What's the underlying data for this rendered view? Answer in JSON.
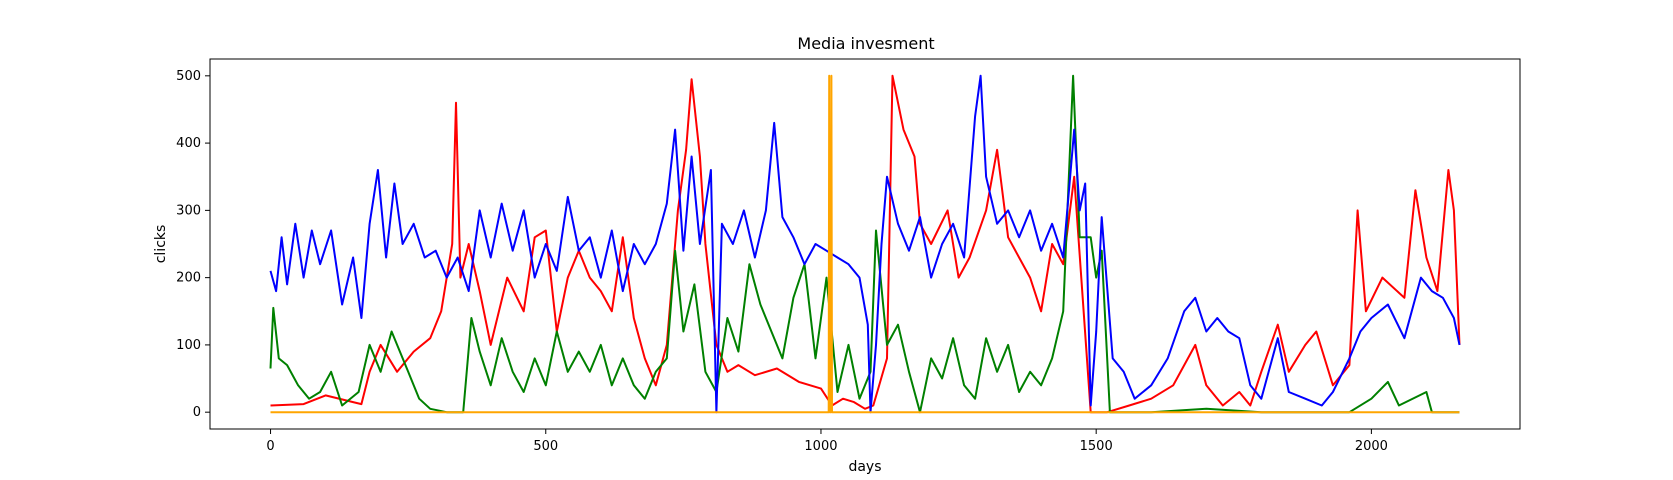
{
  "chart_data": {
    "type": "line",
    "title": "Media invesment",
    "xlabel": "days",
    "ylabel": "clicks",
    "xlim": [
      -110,
      2270
    ],
    "ylim": [
      -25,
      525
    ],
    "xticks": [
      0,
      500,
      1000,
      1500,
      2000
    ],
    "yticks": [
      0,
      100,
      200,
      300,
      400,
      500
    ],
    "grid": false,
    "legend": "none",
    "series": [
      {
        "color": "#ff0000",
        "points": [
          [
            0,
            10
          ],
          [
            60,
            12
          ],
          [
            100,
            25
          ],
          [
            150,
            15
          ],
          [
            165,
            12
          ],
          [
            180,
            60
          ],
          [
            200,
            100
          ],
          [
            230,
            60
          ],
          [
            260,
            90
          ],
          [
            290,
            110
          ],
          [
            310,
            150
          ],
          [
            330,
            250
          ],
          [
            337,
            460
          ],
          [
            345,
            200
          ],
          [
            360,
            250
          ],
          [
            380,
            180
          ],
          [
            400,
            100
          ],
          [
            430,
            200
          ],
          [
            460,
            150
          ],
          [
            480,
            260
          ],
          [
            500,
            270
          ],
          [
            520,
            120
          ],
          [
            540,
            200
          ],
          [
            560,
            240
          ],
          [
            580,
            200
          ],
          [
            600,
            180
          ],
          [
            620,
            150
          ],
          [
            640,
            260
          ],
          [
            660,
            140
          ],
          [
            680,
            80
          ],
          [
            700,
            40
          ],
          [
            720,
            100
          ],
          [
            740,
            300
          ],
          [
            755,
            390
          ],
          [
            765,
            495
          ],
          [
            780,
            380
          ],
          [
            790,
            250
          ],
          [
            810,
            100
          ],
          [
            830,
            60
          ],
          [
            850,
            70
          ],
          [
            880,
            55
          ],
          [
            920,
            65
          ],
          [
            960,
            45
          ],
          [
            1000,
            35
          ],
          [
            1020,
            10
          ],
          [
            1040,
            20
          ],
          [
            1060,
            15
          ],
          [
            1080,
            5
          ],
          [
            1095,
            10
          ],
          [
            1120,
            80
          ],
          [
            1130,
            500
          ],
          [
            1150,
            420
          ],
          [
            1170,
            380
          ],
          [
            1180,
            280
          ],
          [
            1200,
            250
          ],
          [
            1230,
            300
          ],
          [
            1250,
            200
          ],
          [
            1270,
            230
          ],
          [
            1300,
            300
          ],
          [
            1320,
            390
          ],
          [
            1340,
            260
          ],
          [
            1360,
            230
          ],
          [
            1380,
            200
          ],
          [
            1400,
            150
          ],
          [
            1420,
            250
          ],
          [
            1440,
            220
          ],
          [
            1460,
            350
          ],
          [
            1490,
            0
          ],
          [
            1520,
            0
          ],
          [
            1560,
            10
          ],
          [
            1600,
            20
          ],
          [
            1640,
            40
          ],
          [
            1680,
            100
          ],
          [
            1700,
            40
          ],
          [
            1730,
            10
          ],
          [
            1760,
            30
          ],
          [
            1780,
            10
          ],
          [
            1800,
            60
          ],
          [
            1830,
            130
          ],
          [
            1850,
            60
          ],
          [
            1880,
            100
          ],
          [
            1900,
            120
          ],
          [
            1930,
            40
          ],
          [
            1960,
            70
          ],
          [
            1975,
            300
          ],
          [
            1990,
            150
          ],
          [
            2020,
            200
          ],
          [
            2060,
            170
          ],
          [
            2080,
            330
          ],
          [
            2100,
            230
          ],
          [
            2120,
            180
          ],
          [
            2140,
            360
          ],
          [
            2150,
            300
          ],
          [
            2160,
            100
          ]
        ]
      },
      {
        "color": "#008000",
        "points": [
          [
            0,
            65
          ],
          [
            5,
            155
          ],
          [
            15,
            80
          ],
          [
            30,
            70
          ],
          [
            50,
            40
          ],
          [
            70,
            20
          ],
          [
            90,
            30
          ],
          [
            110,
            60
          ],
          [
            130,
            10
          ],
          [
            160,
            30
          ],
          [
            180,
            100
          ],
          [
            200,
            60
          ],
          [
            220,
            120
          ],
          [
            250,
            60
          ],
          [
            270,
            20
          ],
          [
            290,
            5
          ],
          [
            320,
            0
          ],
          [
            350,
            0
          ],
          [
            365,
            140
          ],
          [
            380,
            90
          ],
          [
            400,
            40
          ],
          [
            420,
            110
          ],
          [
            440,
            60
          ],
          [
            460,
            30
          ],
          [
            480,
            80
          ],
          [
            500,
            40
          ],
          [
            520,
            120
          ],
          [
            540,
            60
          ],
          [
            560,
            90
          ],
          [
            580,
            60
          ],
          [
            600,
            100
          ],
          [
            620,
            40
          ],
          [
            640,
            80
          ],
          [
            660,
            40
          ],
          [
            680,
            20
          ],
          [
            700,
            60
          ],
          [
            720,
            80
          ],
          [
            735,
            240
          ],
          [
            750,
            120
          ],
          [
            770,
            190
          ],
          [
            790,
            60
          ],
          [
            810,
            30
          ],
          [
            830,
            140
          ],
          [
            850,
            90
          ],
          [
            870,
            220
          ],
          [
            890,
            160
          ],
          [
            910,
            120
          ],
          [
            930,
            80
          ],
          [
            950,
            170
          ],
          [
            970,
            220
          ],
          [
            990,
            80
          ],
          [
            1010,
            200
          ],
          [
            1030,
            30
          ],
          [
            1050,
            100
          ],
          [
            1070,
            20
          ],
          [
            1090,
            60
          ],
          [
            1100,
            270
          ],
          [
            1120,
            100
          ],
          [
            1140,
            130
          ],
          [
            1160,
            60
          ],
          [
            1180,
            0
          ],
          [
            1200,
            80
          ],
          [
            1220,
            50
          ],
          [
            1240,
            110
          ],
          [
            1260,
            40
          ],
          [
            1280,
            20
          ],
          [
            1300,
            110
          ],
          [
            1320,
            60
          ],
          [
            1340,
            100
          ],
          [
            1360,
            30
          ],
          [
            1380,
            60
          ],
          [
            1400,
            40
          ],
          [
            1420,
            80
          ],
          [
            1440,
            150
          ],
          [
            1458,
            500
          ],
          [
            1470,
            260
          ],
          [
            1490,
            260
          ],
          [
            1500,
            200
          ],
          [
            1510,
            240
          ],
          [
            1525,
            0
          ],
          [
            1600,
            0
          ],
          [
            1700,
            5
          ],
          [
            1800,
            0
          ],
          [
            1900,
            0
          ],
          [
            1960,
            0
          ],
          [
            2000,
            20
          ],
          [
            2030,
            45
          ],
          [
            2050,
            10
          ],
          [
            2100,
            30
          ],
          [
            2110,
            0
          ],
          [
            2160,
            0
          ]
        ]
      },
      {
        "color": "#0000ff",
        "points": [
          [
            0,
            210
          ],
          [
            10,
            180
          ],
          [
            20,
            260
          ],
          [
            30,
            190
          ],
          [
            45,
            280
          ],
          [
            60,
            200
          ],
          [
            75,
            270
          ],
          [
            90,
            220
          ],
          [
            110,
            270
          ],
          [
            130,
            160
          ],
          [
            150,
            230
          ],
          [
            165,
            140
          ],
          [
            180,
            280
          ],
          [
            195,
            360
          ],
          [
            210,
            230
          ],
          [
            225,
            340
          ],
          [
            240,
            250
          ],
          [
            260,
            280
          ],
          [
            280,
            230
          ],
          [
            300,
            240
          ],
          [
            320,
            200
          ],
          [
            340,
            230
          ],
          [
            360,
            180
          ],
          [
            380,
            300
          ],
          [
            400,
            230
          ],
          [
            420,
            310
          ],
          [
            440,
            240
          ],
          [
            460,
            300
          ],
          [
            480,
            200
          ],
          [
            500,
            250
          ],
          [
            520,
            210
          ],
          [
            540,
            320
          ],
          [
            560,
            240
          ],
          [
            580,
            260
          ],
          [
            600,
            200
          ],
          [
            620,
            270
          ],
          [
            640,
            180
          ],
          [
            660,
            250
          ],
          [
            680,
            220
          ],
          [
            700,
            250
          ],
          [
            720,
            310
          ],
          [
            735,
            420
          ],
          [
            750,
            240
          ],
          [
            765,
            380
          ],
          [
            780,
            250
          ],
          [
            800,
            360
          ],
          [
            810,
            0
          ],
          [
            820,
            280
          ],
          [
            840,
            250
          ],
          [
            860,
            300
          ],
          [
            880,
            230
          ],
          [
            900,
            300
          ],
          [
            915,
            430
          ],
          [
            930,
            290
          ],
          [
            950,
            260
          ],
          [
            970,
            220
          ],
          [
            990,
            250
          ],
          [
            1010,
            240
          ],
          [
            1030,
            230
          ],
          [
            1050,
            220
          ],
          [
            1070,
            200
          ],
          [
            1085,
            130
          ],
          [
            1090,
            0
          ],
          [
            1100,
            100
          ],
          [
            1110,
            250
          ],
          [
            1120,
            350
          ],
          [
            1140,
            280
          ],
          [
            1160,
            240
          ],
          [
            1180,
            290
          ],
          [
            1200,
            200
          ],
          [
            1220,
            250
          ],
          [
            1240,
            280
          ],
          [
            1260,
            230
          ],
          [
            1280,
            440
          ],
          [
            1290,
            500
          ],
          [
            1300,
            350
          ],
          [
            1320,
            280
          ],
          [
            1340,
            300
          ],
          [
            1360,
            260
          ],
          [
            1380,
            300
          ],
          [
            1400,
            240
          ],
          [
            1420,
            280
          ],
          [
            1440,
            230
          ],
          [
            1460,
            420
          ],
          [
            1470,
            300
          ],
          [
            1480,
            340
          ],
          [
            1490,
            10
          ],
          [
            1500,
            120
          ],
          [
            1510,
            290
          ],
          [
            1530,
            80
          ],
          [
            1550,
            60
          ],
          [
            1570,
            20
          ],
          [
            1600,
            40
          ],
          [
            1630,
            80
          ],
          [
            1660,
            150
          ],
          [
            1680,
            170
          ],
          [
            1700,
            120
          ],
          [
            1720,
            140
          ],
          [
            1740,
            120
          ],
          [
            1760,
            110
          ],
          [
            1780,
            40
          ],
          [
            1800,
            20
          ],
          [
            1830,
            110
          ],
          [
            1850,
            30
          ],
          [
            1880,
            20
          ],
          [
            1910,
            10
          ],
          [
            1930,
            30
          ],
          [
            1960,
            80
          ],
          [
            1980,
            120
          ],
          [
            2000,
            140
          ],
          [
            2030,
            160
          ],
          [
            2060,
            110
          ],
          [
            2090,
            200
          ],
          [
            2110,
            180
          ],
          [
            2130,
            170
          ],
          [
            2150,
            140
          ],
          [
            2160,
            100
          ]
        ]
      },
      {
        "color": "#ffa500",
        "points": [
          [
            0,
            0
          ],
          [
            1014,
            0
          ],
          [
            1015,
            500
          ],
          [
            1016,
            0
          ],
          [
            1018,
            0
          ],
          [
            1019,
            500
          ],
          [
            1020,
            0
          ],
          [
            2160,
            0
          ]
        ]
      }
    ]
  }
}
